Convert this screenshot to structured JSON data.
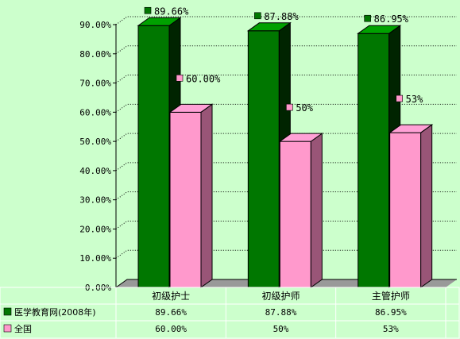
{
  "chart_data": {
    "type": "bar",
    "categories": [
      "初级护士",
      "初级护师",
      "主管护师"
    ],
    "series": [
      {
        "name": "医学教育网(2008年)",
        "values": [
          89.66,
          87.88,
          86.95
        ],
        "labels": [
          "89.66%",
          "87.88%",
          "86.95%"
        ],
        "color": "#007700"
      },
      {
        "name": "全国",
        "values": [
          60.0,
          50.0,
          53.0
        ],
        "labels": [
          "60.00%",
          "50%",
          "53%"
        ],
        "color": "#ff99cc"
      }
    ],
    "y_ticks": [
      "0.00%",
      "10.00%",
      "20.00%",
      "30.00%",
      "40.00%",
      "50.00%",
      "60.00%",
      "70.00%",
      "80.00%",
      "90.00%"
    ],
    "ylim": [
      0,
      90
    ],
    "grid": true,
    "legend": "data table below chart",
    "title": "",
    "xlabel": "",
    "ylabel": ""
  }
}
